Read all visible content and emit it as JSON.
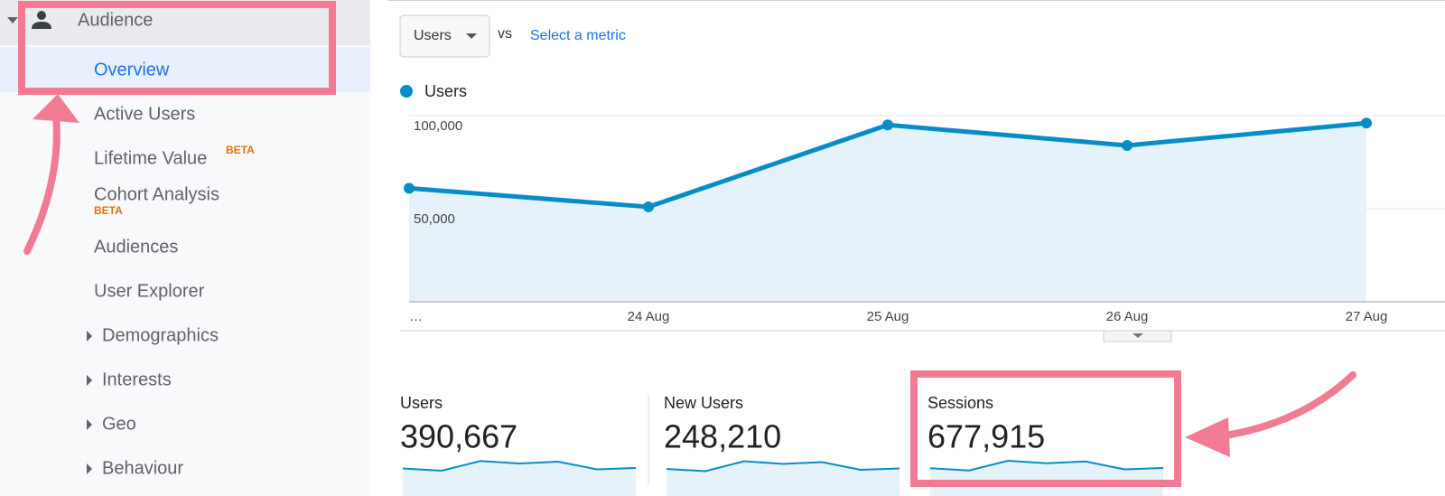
{
  "sidebar": {
    "section": "Audience",
    "items": [
      {
        "label": "Overview"
      },
      {
        "label": "Active Users"
      },
      {
        "label": "Lifetime Value",
        "badge": "BETA"
      },
      {
        "label": "Cohort Analysis",
        "badge": "BETA"
      },
      {
        "label": "Audiences"
      },
      {
        "label": "User Explorer"
      },
      {
        "label": "Demographics"
      },
      {
        "label": "Interests"
      },
      {
        "label": "Geo"
      },
      {
        "label": "Behaviour"
      }
    ]
  },
  "toolbar": {
    "metric": "Users",
    "vs": "vs",
    "select": "Select a metric"
  },
  "chart_data": {
    "type": "line",
    "categories": [
      "…",
      "24 Aug",
      "25 Aug",
      "26 Aug",
      "27 Aug"
    ],
    "series": [
      {
        "name": "Users",
        "color": "#058dc7",
        "values": [
          61000,
          51000,
          95000,
          84000,
          96000
        ]
      }
    ],
    "ylim": [
      0,
      100000
    ],
    "yticks": [
      {
        "value": 50000,
        "label": "50,000"
      },
      {
        "value": 100000,
        "label": "100,000"
      }
    ],
    "grid": true
  },
  "metrics": [
    {
      "label": "Users",
      "value": "390,667",
      "sparkline": [
        62,
        52,
        95,
        84,
        92,
        58,
        64
      ]
    },
    {
      "label": "New Users",
      "value": "248,210",
      "sparkline": [
        60,
        50,
        94,
        82,
        90,
        56,
        62
      ]
    },
    {
      "label": "Sessions",
      "value": "677,915",
      "sparkline": [
        63,
        53,
        96,
        85,
        93,
        58,
        64
      ]
    }
  ]
}
